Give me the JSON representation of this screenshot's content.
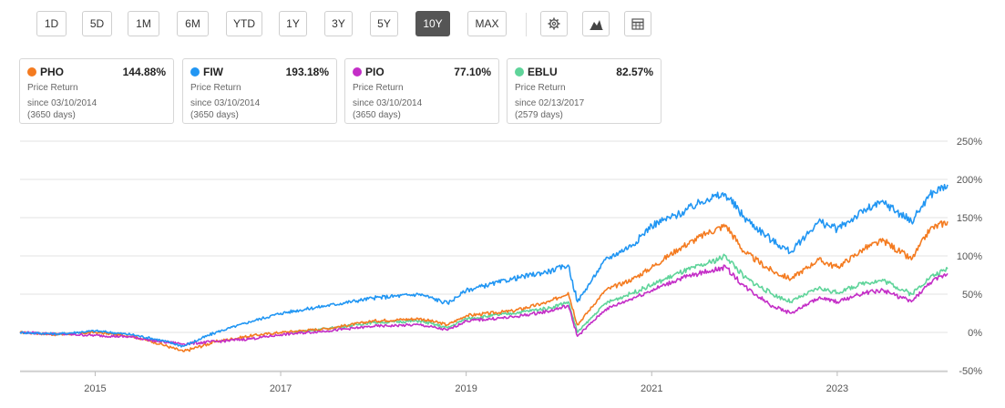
{
  "toolbar": {
    "ranges": [
      "1D",
      "5D",
      "1M",
      "6M",
      "YTD",
      "1Y",
      "3Y",
      "5Y",
      "10Y",
      "MAX"
    ],
    "active": "10Y",
    "icons": [
      "gear-icon",
      "mountain-chart-icon",
      "table-icon"
    ]
  },
  "cards": [
    {
      "ticker": "PHO",
      "return": "144.88%",
      "label": "Price Return",
      "since": "since 03/10/2014",
      "days": "(3650 days)",
      "color": "#f47b20"
    },
    {
      "ticker": "FIW",
      "return": "193.18%",
      "label": "Price Return",
      "since": "since 03/10/2014",
      "days": "(3650 days)",
      "color": "#2196f3"
    },
    {
      "ticker": "PIO",
      "return": "77.10%",
      "label": "Price Return",
      "since": "since 03/10/2014",
      "days": "(3650 days)",
      "color": "#c42ec7"
    },
    {
      "ticker": "EBLU",
      "return": "82.57%",
      "label": "Price Return",
      "since": "since 02/13/2017",
      "days": "(2579 days)",
      "color": "#5fd49a"
    }
  ],
  "chart_data": {
    "type": "line",
    "y_ticks": [
      "250%",
      "200%",
      "150%",
      "100%",
      "50%",
      "0%",
      "-50%"
    ],
    "x_ticks": [
      "2015",
      "2017",
      "2019",
      "2021",
      "2023"
    ],
    "ylim": [
      -50,
      250
    ],
    "xlim": [
      2014.19,
      2024.19
    ],
    "grid": true,
    "series": [
      {
        "name": "PHO",
        "color": "#f47b20",
        "x": [
          2014.19,
          2014.6,
          2015.0,
          2015.4,
          2015.7,
          2015.95,
          2016.3,
          2016.7,
          2017.0,
          2017.5,
          2018.0,
          2018.5,
          2018.8,
          2019.0,
          2019.5,
          2019.9,
          2020.1,
          2020.2,
          2020.5,
          2020.8,
          2021.0,
          2021.3,
          2021.6,
          2021.8,
          2022.0,
          2022.3,
          2022.5,
          2022.8,
          2023.0,
          2023.3,
          2023.5,
          2023.8,
          2024.0,
          2024.19
        ],
        "y": [
          0,
          -3,
          0,
          -5,
          -15,
          -25,
          -12,
          -4,
          0,
          5,
          15,
          18,
          10,
          22,
          28,
          40,
          52,
          10,
          55,
          70,
          85,
          110,
          130,
          140,
          105,
          80,
          70,
          95,
          85,
          110,
          120,
          95,
          135,
          145
        ]
      },
      {
        "name": "FIW",
        "color": "#2196f3",
        "x": [
          2014.19,
          2014.6,
          2015.0,
          2015.4,
          2015.7,
          2015.95,
          2016.3,
          2016.7,
          2017.0,
          2017.5,
          2018.0,
          2018.5,
          2018.8,
          2019.0,
          2019.5,
          2019.9,
          2020.1,
          2020.2,
          2020.5,
          2020.8,
          2021.0,
          2021.3,
          2021.6,
          2021.8,
          2022.0,
          2022.3,
          2022.5,
          2022.8,
          2023.0,
          2023.3,
          2023.5,
          2023.8,
          2024.0,
          2024.19
        ],
        "y": [
          0,
          -2,
          2,
          -3,
          -10,
          -18,
          0,
          15,
          25,
          35,
          45,
          50,
          38,
          55,
          70,
          80,
          88,
          40,
          95,
          115,
          140,
          155,
          175,
          180,
          150,
          120,
          105,
          145,
          135,
          160,
          170,
          145,
          180,
          193
        ]
      },
      {
        "name": "PIO",
        "color": "#c42ec7",
        "x": [
          2014.19,
          2014.6,
          2015.0,
          2015.4,
          2015.7,
          2015.95,
          2016.3,
          2016.7,
          2017.0,
          2017.5,
          2018.0,
          2018.5,
          2018.8,
          2019.0,
          2019.5,
          2019.9,
          2020.1,
          2020.2,
          2020.5,
          2020.8,
          2021.0,
          2021.3,
          2021.6,
          2021.8,
          2022.0,
          2022.3,
          2022.5,
          2022.8,
          2023.0,
          2023.3,
          2023.5,
          2023.8,
          2024.0,
          2024.19
        ],
        "y": [
          0,
          -2,
          -4,
          -6,
          -12,
          -15,
          -12,
          -8,
          -3,
          2,
          8,
          10,
          3,
          15,
          20,
          28,
          35,
          -5,
          30,
          45,
          55,
          70,
          80,
          85,
          60,
          35,
          25,
          45,
          40,
          52,
          55,
          40,
          65,
          77
        ]
      },
      {
        "name": "EBLU",
        "color": "#5fd49a",
        "x": [
          2017.12,
          2017.5,
          2018.0,
          2018.5,
          2018.8,
          2019.0,
          2019.5,
          2019.9,
          2020.1,
          2020.2,
          2020.5,
          2020.8,
          2021.0,
          2021.3,
          2021.6,
          2021.8,
          2022.0,
          2022.3,
          2022.5,
          2022.8,
          2023.0,
          2023.3,
          2023.5,
          2023.8,
          2024.0,
          2024.19
        ],
        "y": [
          0,
          5,
          13,
          15,
          6,
          18,
          25,
          32,
          40,
          0,
          38,
          52,
          62,
          78,
          90,
          100,
          72,
          50,
          40,
          58,
          52,
          65,
          68,
          50,
          72,
          83
        ]
      }
    ]
  }
}
